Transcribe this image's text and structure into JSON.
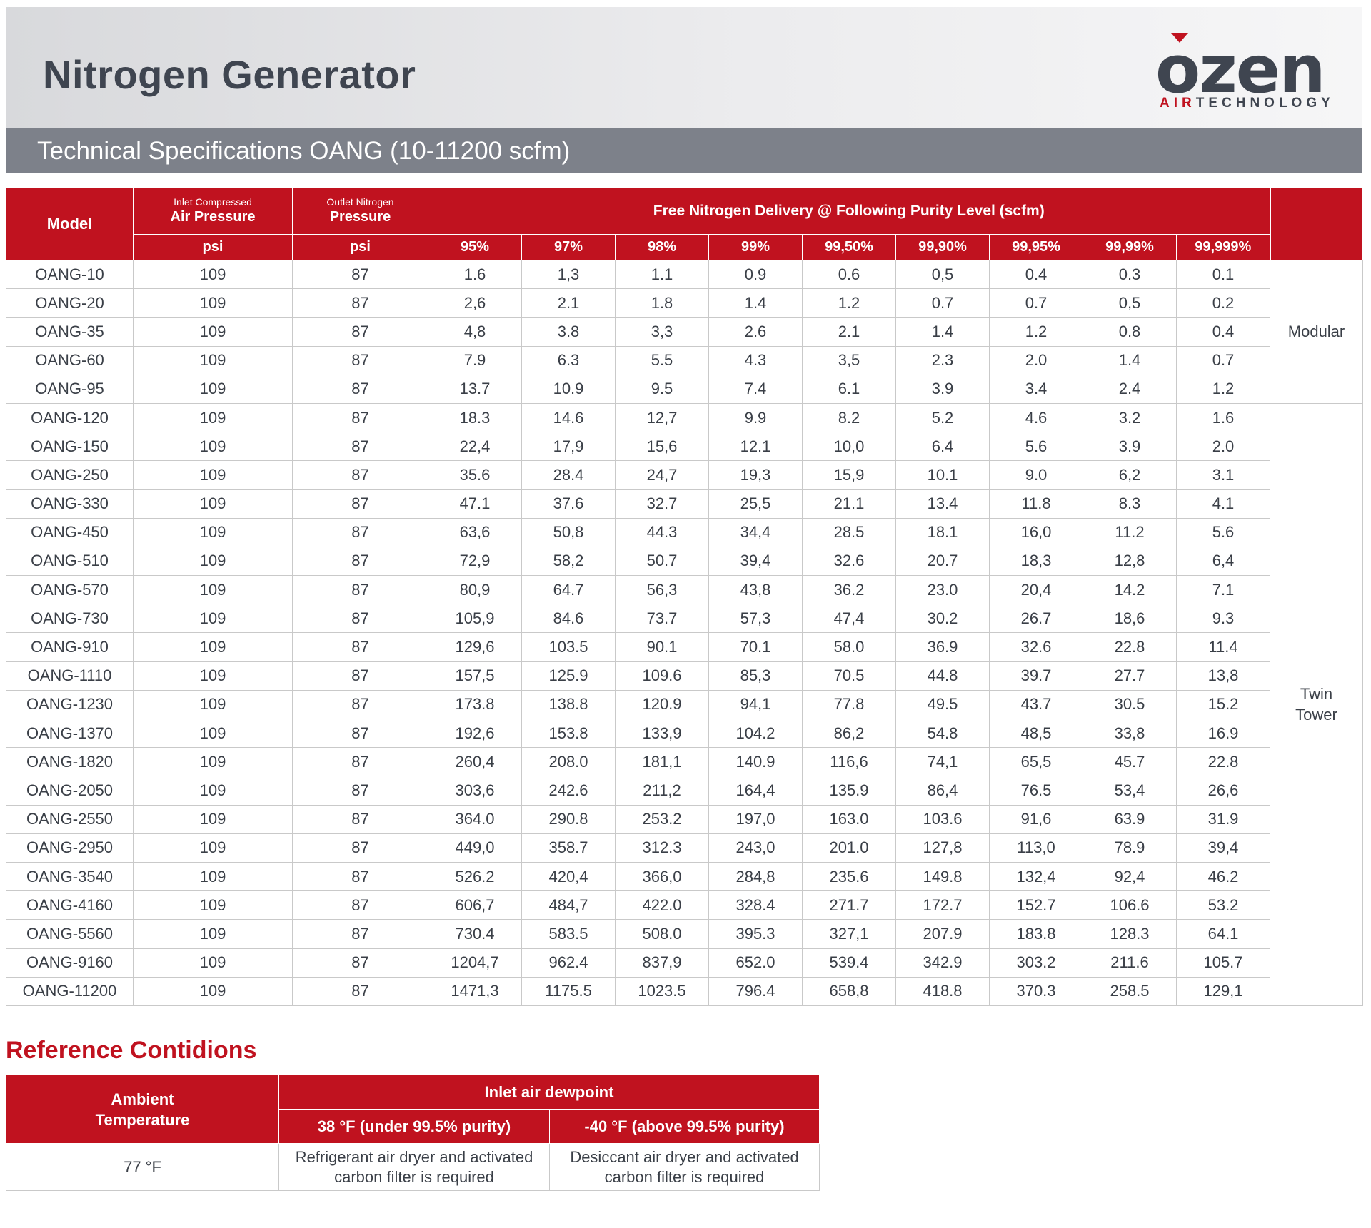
{
  "header": {
    "title": "Nitrogen Generator",
    "subtitle": "Technical Specifications  OANG (10-11200 scfm)"
  },
  "logo": {
    "word": "ozen",
    "sub_air": "AIR",
    "sub_technology": "TECHNOLOGY",
    "accent_color": "#c0121f"
  },
  "colors": {
    "accent": "#c0121f",
    "band_gray": "#7d818a",
    "text": "#3a3f47"
  },
  "spec_table": {
    "headers": {
      "model": "Model",
      "inlet_small": "Inlet Compressed",
      "inlet_big": "Air  Pressure",
      "outlet_small": "Outlet Nitrogen",
      "outlet_big": "Pressure",
      "delivery": "Free Nitrogen Delivery @ Following Purity Level (scfm)",
      "inlet_unit": "psi",
      "outlet_unit": "psi",
      "purities": [
        "95%",
        "97%",
        "98%",
        "99%",
        "99,50%",
        "99,90%",
        "99,95%",
        "99,99%",
        "99,999%"
      ]
    },
    "type_groups": {
      "modular": "Modular",
      "twin_line1": "Twin",
      "twin_line2": "Tower"
    },
    "rows": [
      {
        "model": "OANG-10",
        "inlet": "109",
        "outlet": "87",
        "values": [
          "1.6",
          "1,3",
          "1.1",
          "0.9",
          "0.6",
          "0,5",
          "0.4",
          "0.3",
          "0.1"
        ]
      },
      {
        "model": "OANG-20",
        "inlet": "109",
        "outlet": "87",
        "values": [
          "2,6",
          "2.1",
          "1.8",
          "1.4",
          "1.2",
          "0.7",
          "0.7",
          "0,5",
          "0.2"
        ]
      },
      {
        "model": "OANG-35",
        "inlet": "109",
        "outlet": "87",
        "values": [
          "4,8",
          "3.8",
          "3,3",
          "2.6",
          "2.1",
          "1.4",
          "1.2",
          "0.8",
          "0.4"
        ]
      },
      {
        "model": "OANG-60",
        "inlet": "109",
        "outlet": "87",
        "values": [
          "7.9",
          "6.3",
          "5.5",
          "4.3",
          "3,5",
          "2.3",
          "2.0",
          "1.4",
          "0.7"
        ]
      },
      {
        "model": "OANG-95",
        "inlet": "109",
        "outlet": "87",
        "values": [
          "13.7",
          "10.9",
          "9.5",
          "7.4",
          "6.1",
          "3.9",
          "3.4",
          "2.4",
          "1.2"
        ]
      },
      {
        "model": "OANG-120",
        "inlet": "109",
        "outlet": "87",
        "values": [
          "18.3",
          "14.6",
          "12,7",
          "9.9",
          "8.2",
          "5.2",
          "4.6",
          "3.2",
          "1.6"
        ]
      },
      {
        "model": "OANG-150",
        "inlet": "109",
        "outlet": "87",
        "values": [
          "22,4",
          "17,9",
          "15,6",
          "12.1",
          "10,0",
          "6.4",
          "5.6",
          "3.9",
          "2.0"
        ]
      },
      {
        "model": "OANG-250",
        "inlet": "109",
        "outlet": "87",
        "values": [
          "35.6",
          "28.4",
          "24,7",
          "19,3",
          "15,9",
          "10.1",
          "9.0",
          "6,2",
          "3.1"
        ]
      },
      {
        "model": "OANG-330",
        "inlet": "109",
        "outlet": "87",
        "values": [
          "47.1",
          "37.6",
          "32.7",
          "25,5",
          "21.1",
          "13.4",
          "11.8",
          "8.3",
          "4.1"
        ]
      },
      {
        "model": "OANG-450",
        "inlet": "109",
        "outlet": "87",
        "values": [
          "63,6",
          "50,8",
          "44.3",
          "34,4",
          "28.5",
          "18.1",
          "16,0",
          "11.2",
          "5.6"
        ]
      },
      {
        "model": "OANG-510",
        "inlet": "109",
        "outlet": "87",
        "values": [
          "72,9",
          "58,2",
          "50.7",
          "39,4",
          "32.6",
          "20.7",
          "18,3",
          "12,8",
          "6,4"
        ]
      },
      {
        "model": "OANG-570",
        "inlet": "109",
        "outlet": "87",
        "values": [
          "80,9",
          "64.7",
          "56,3",
          "43,8",
          "36.2",
          "23.0",
          "20,4",
          "14.2",
          "7.1"
        ]
      },
      {
        "model": "OANG-730",
        "inlet": "109",
        "outlet": "87",
        "values": [
          "105,9",
          "84.6",
          "73.7",
          "57,3",
          "47,4",
          "30.2",
          "26.7",
          "18,6",
          "9.3"
        ]
      },
      {
        "model": "OANG-910",
        "inlet": "109",
        "outlet": "87",
        "values": [
          "129,6",
          "103.5",
          "90.1",
          "70.1",
          "58.0",
          "36.9",
          "32.6",
          "22.8",
          "11.4"
        ]
      },
      {
        "model": "OANG-1110",
        "inlet": "109",
        "outlet": "87",
        "values": [
          "157,5",
          "125.9",
          "109.6",
          "85,3",
          "70.5",
          "44.8",
          "39.7",
          "27.7",
          "13,8"
        ]
      },
      {
        "model": "OANG-1230",
        "inlet": "109",
        "outlet": "87",
        "values": [
          "173.8",
          "138.8",
          "120.9",
          "94,1",
          "77.8",
          "49.5",
          "43.7",
          "30.5",
          "15.2"
        ]
      },
      {
        "model": "OANG-1370",
        "inlet": "109",
        "outlet": "87",
        "values": [
          "192,6",
          "153.8",
          "133,9",
          "104.2",
          "86,2",
          "54.8",
          "48,5",
          "33,8",
          "16.9"
        ]
      },
      {
        "model": "OANG-1820",
        "inlet": "109",
        "outlet": "87",
        "values": [
          "260,4",
          "208.0",
          "181,1",
          "140.9",
          "116,6",
          "74,1",
          "65,5",
          "45.7",
          "22.8"
        ]
      },
      {
        "model": "OANG-2050",
        "inlet": "109",
        "outlet": "87",
        "values": [
          "303,6",
          "242.6",
          "211,2",
          "164,4",
          "135.9",
          "86,4",
          "76.5",
          "53,4",
          "26,6"
        ]
      },
      {
        "model": "OANG-2550",
        "inlet": "109",
        "outlet": "87",
        "values": [
          "364.0",
          "290.8",
          "253.2",
          "197,0",
          "163.0",
          "103.6",
          "91,6",
          "63.9",
          "31.9"
        ]
      },
      {
        "model": "OANG-2950",
        "inlet": "109",
        "outlet": "87",
        "values": [
          "449,0",
          "358.7",
          "312.3",
          "243,0",
          "201.0",
          "127,8",
          "113,0",
          "78.9",
          "39,4"
        ]
      },
      {
        "model": "OANG-3540",
        "inlet": "109",
        "outlet": "87",
        "values": [
          "526.2",
          "420,4",
          "366,0",
          "284,8",
          "235.6",
          "149.8",
          "132,4",
          "92,4",
          "46.2"
        ]
      },
      {
        "model": "OANG-4160",
        "inlet": "109",
        "outlet": "87",
        "values": [
          "606,7",
          "484,7",
          "422.0",
          "328.4",
          "271.7",
          "172.7",
          "152.7",
          "106.6",
          "53.2"
        ]
      },
      {
        "model": "OANG-5560",
        "inlet": "109",
        "outlet": "87",
        "values": [
          "730.4",
          "583.5",
          "508.0",
          "395.3",
          "327,1",
          "207.9",
          "183.8",
          "128.3",
          "64.1"
        ]
      },
      {
        "model": "OANG-9160",
        "inlet": "109",
        "outlet": "87",
        "values": [
          "1204,7",
          "962.4",
          "837,9",
          "652.0",
          "539.4",
          "342.9",
          "303.2",
          "211.6",
          "105.7"
        ]
      },
      {
        "model": "OANG-11200",
        "inlet": "109",
        "outlet": "87",
        "values": [
          "1471,3",
          "1175.5",
          "1023.5",
          "796.4",
          "658,8",
          "418.8",
          "370.3",
          "258.5",
          "129,1"
        ]
      }
    ]
  },
  "reference": {
    "title": "Reference Contidions",
    "ambient_header_line1": "Ambient",
    "ambient_header_line2": "Temperature",
    "dewpoint_header": "Inlet air dewpoint",
    "col1_header": "38  °F (under 99.5% purity)",
    "col2_header": "-40  °F (above 99.5% purity)",
    "ambient_value": "77 °F",
    "col1_line1": "Refrigerant air dryer and activated",
    "col1_line2": "carbon filter is required",
    "col2_line1": "Desiccant air dryer and activated",
    "col2_line2": "carbon filter is required"
  }
}
